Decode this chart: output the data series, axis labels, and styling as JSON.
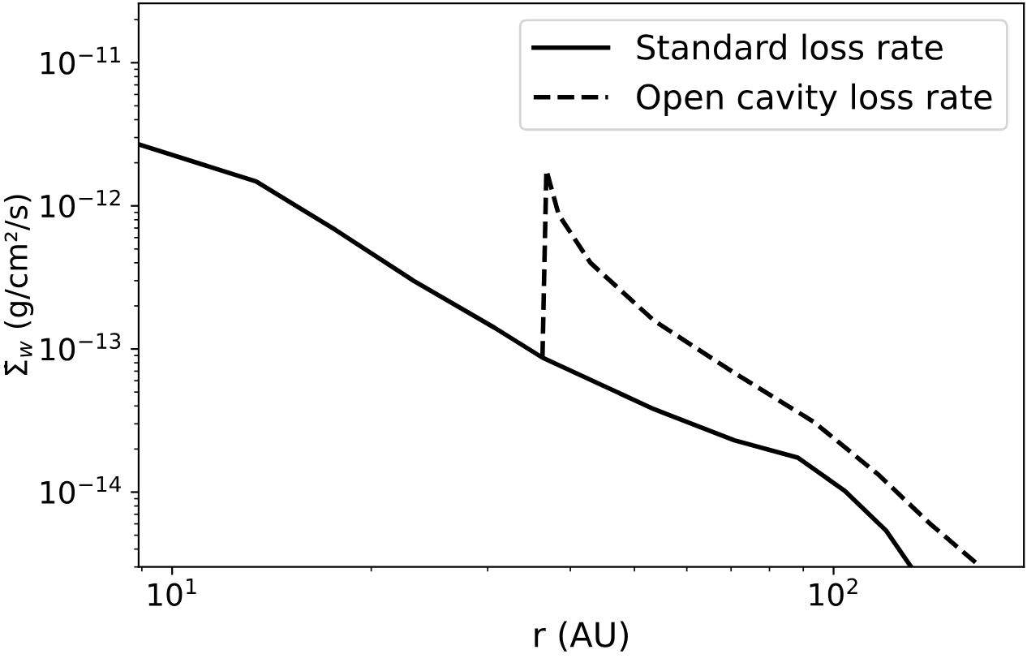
{
  "chart_data": {
    "type": "line",
    "xlabel": "r (AU)",
    "ylabel": "Σ̇$_{w}$ (g/cm²/s)",
    "log": "xy",
    "legend": "top right",
    "grid": false,
    "xlim": [
      8.9,
      194
    ],
    "ylim": [
      3e-15,
      2.6e-11
    ],
    "xticks": [
      {
        "value": 10,
        "label": "10$^{1}$"
      },
      {
        "value": 100,
        "label": "10$^{2}$"
      }
    ],
    "yticks": [
      {
        "value": 1e-14,
        "label": "10$^{−14}$"
      },
      {
        "value": 1e-13,
        "label": "10$^{−13}$"
      },
      {
        "value": 1e-12,
        "label": "10$^{−12}$"
      },
      {
        "value": 1e-11,
        "label": "10$^{−11}$"
      }
    ],
    "series": [
      {
        "name": "Standard loss rate",
        "color": "#000000",
        "line_style": "solid",
        "x": [
          8.9,
          13.4,
          17.65,
          23.3,
          30.7,
          36.3,
          53.5,
          70.8,
          88.3,
          104,
          120,
          131
        ],
        "values": [
          2.69e-12,
          1.48e-12,
          6.8e-13,
          2.95e-13,
          1.41e-13,
          8.7e-14,
          3.8e-14,
          2.3e-14,
          1.74e-14,
          1.02e-14,
          5.4e-15,
          3e-15
        ]
      },
      {
        "name": "Open cavity loss rate",
        "color": "#000000",
        "line_style": "dashed",
        "x": [
          36.3,
          36.8,
          38.4,
          42.9,
          53.5,
          70.8,
          93.3,
          117,
          140,
          167
        ],
        "values": [
          8.7e-14,
          1.78e-12,
          8.7e-13,
          4e-13,
          1.58e-13,
          6.8e-14,
          3.1e-14,
          1.32e-14,
          6e-15,
          3e-15
        ]
      }
    ]
  }
}
